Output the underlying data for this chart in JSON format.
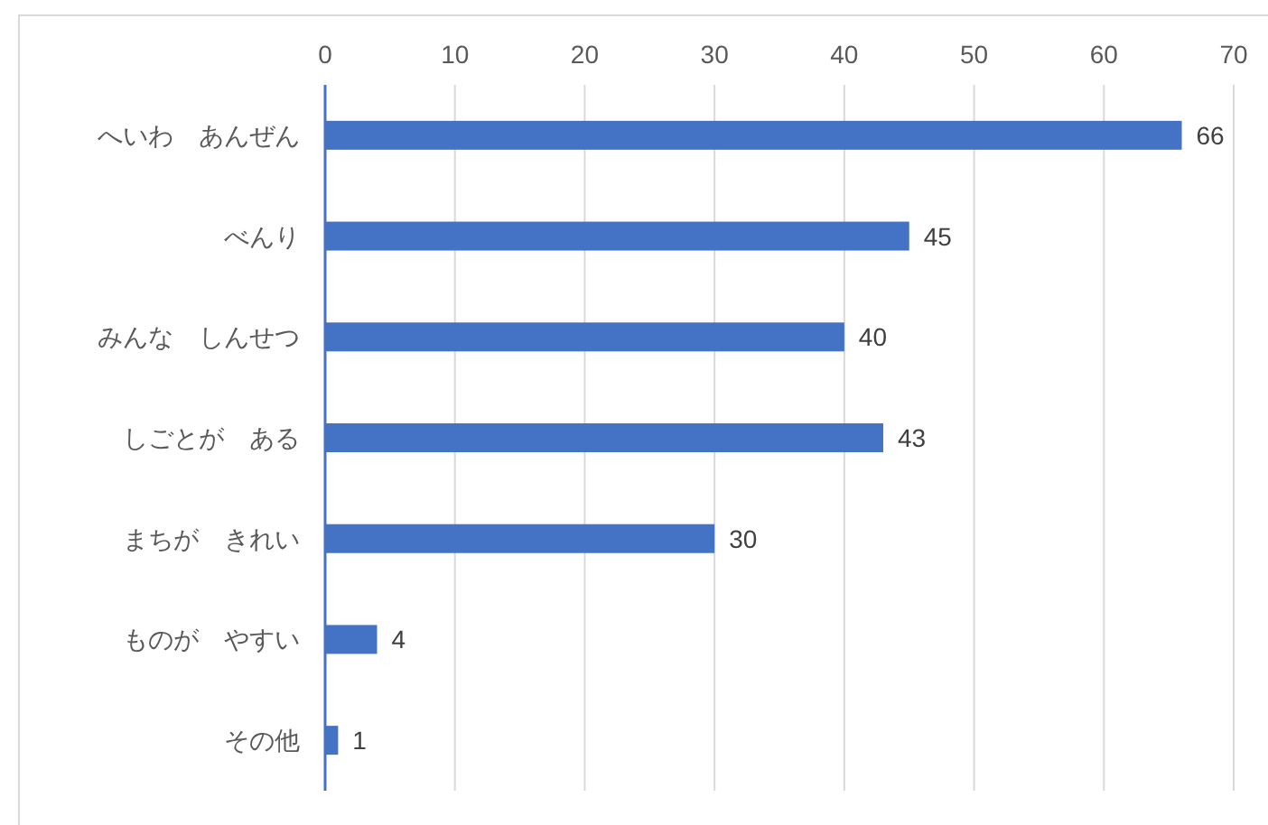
{
  "chart_data": {
    "type": "bar",
    "orientation": "horizontal",
    "categories": [
      "へいわ　あんぜん",
      "べんり",
      "みんな　しんせつ",
      "しごとが　ある",
      "まちが　きれい",
      "ものが　やすい",
      "その他"
    ],
    "values": [
      66,
      45,
      40,
      43,
      30,
      4,
      1
    ],
    "color": "#4472c4",
    "xlim": [
      0,
      70
    ],
    "xticks": [
      0,
      10,
      20,
      30,
      40,
      50,
      60,
      70
    ],
    "grid": "x",
    "data_labels": true
  }
}
